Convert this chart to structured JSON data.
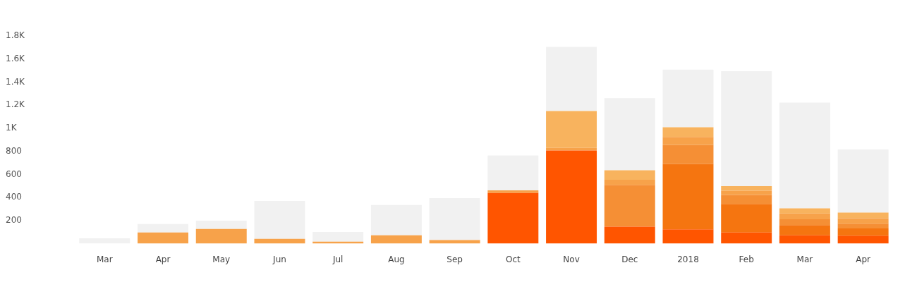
{
  "chart_data": {
    "type": "bar",
    "stacked": true,
    "categories": [
      "Mar",
      "Apr",
      "May",
      "Jun",
      "Jul",
      "Aug",
      "Sep",
      "Oct",
      "Nov",
      "Dec",
      "2018",
      "Feb",
      "Mar",
      "Apr"
    ],
    "series": [
      {
        "color": "#ff5500",
        "values": [
          null,
          null,
          null,
          null,
          null,
          null,
          null,
          439,
          807,
          147,
          125,
          97,
          72,
          70
        ]
      },
      {
        "color": "#f57510",
        "values": [
          null,
          null,
          null,
          null,
          null,
          null,
          null,
          null,
          null,
          null,
          567,
          248,
          89,
          62
        ]
      },
      {
        "color": "#f58f35",
        "values": [
          null,
          null,
          null,
          null,
          null,
          null,
          null,
          null,
          null,
          363,
          165,
          77,
          50,
          42
        ]
      },
      {
        "color": "#f7a24a",
        "values": [
          null,
          97,
          128,
          42,
          18,
          72,
          31,
          23,
          24,
          44,
          68,
          37,
          51,
          46
        ]
      },
      {
        "color": "#f8b35e",
        "values": [
          null,
          null,
          null,
          null,
          null,
          null,
          null,
          null,
          319,
          83,
          84,
          40,
          44,
          50
        ]
      },
      {
        "color": "#f1f1f1",
        "values": [
          46,
          74,
          72,
          329,
          83,
          264,
          364,
          303,
          557,
          624,
          501,
          997,
          918,
          547
        ]
      }
    ],
    "ylim": [
      0,
      1800
    ],
    "yticks": [
      200,
      400,
      600,
      800,
      {
        "value": 1000,
        "label": "1K"
      },
      {
        "value": 1200,
        "label": "1.2K"
      },
      {
        "value": 1400,
        "label": "1.4K"
      },
      {
        "value": 1600,
        "label": "1.6K"
      },
      {
        "value": 1800,
        "label": "1.8K"
      }
    ],
    "grid": false,
    "legend": false
  }
}
